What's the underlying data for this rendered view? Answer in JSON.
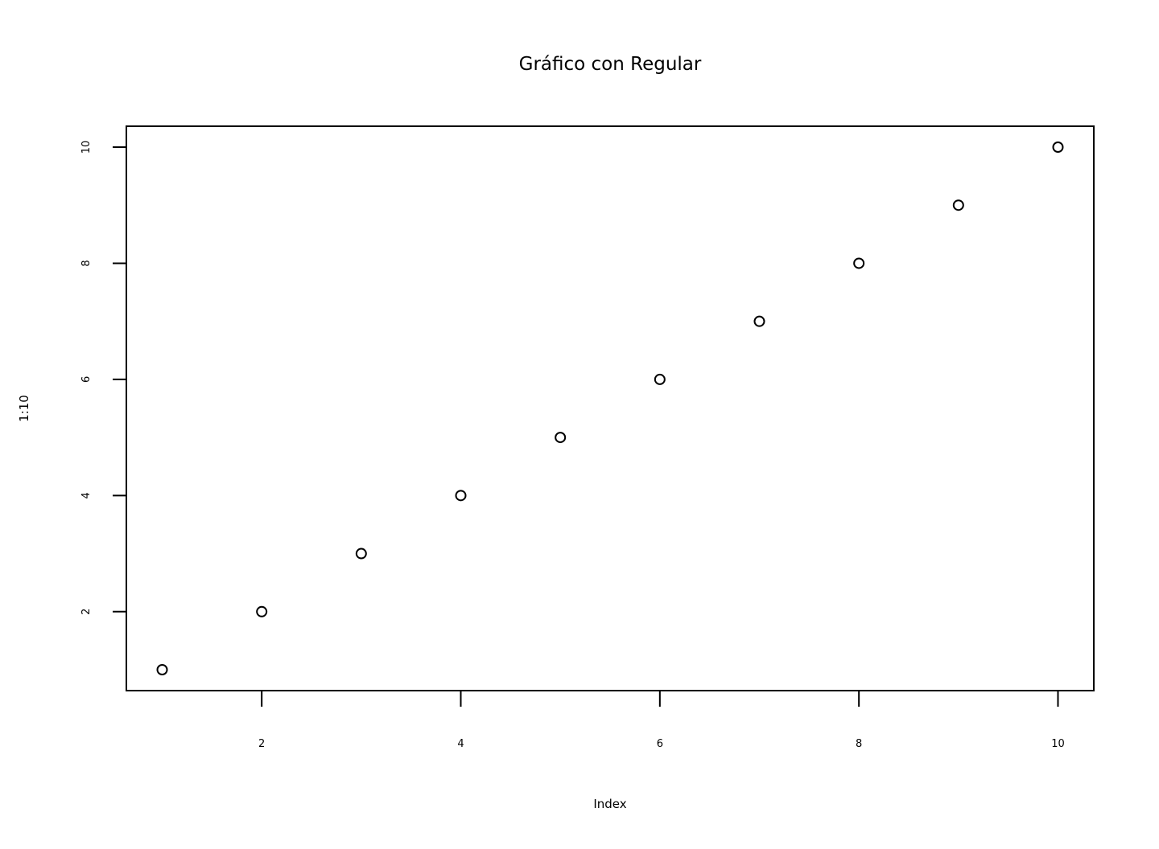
{
  "chart_data": {
    "type": "scatter",
    "title": "Gráfico con Regular",
    "xlabel": "Index",
    "ylabel": "1:10",
    "x": [
      1,
      2,
      3,
      4,
      5,
      6,
      7,
      8,
      9,
      10
    ],
    "y": [
      1,
      2,
      3,
      4,
      5,
      6,
      7,
      8,
      9,
      10
    ],
    "xlim": [
      0.64,
      10.36
    ],
    "ylim": [
      0.64,
      10.36
    ],
    "xticks": [
      2,
      4,
      6,
      8,
      10
    ],
    "xtick_labels": [
      "2",
      "4",
      "6",
      "8",
      "10"
    ],
    "yticks": [
      2,
      4,
      6,
      8,
      10
    ],
    "ytick_labels": [
      "2",
      "4",
      "6",
      "8",
      "10"
    ],
    "marker": "open-circle",
    "grid": false,
    "legend": "none",
    "colors": {
      "marker": "#000000",
      "axes": "#000000",
      "background": "#ffffff"
    }
  }
}
